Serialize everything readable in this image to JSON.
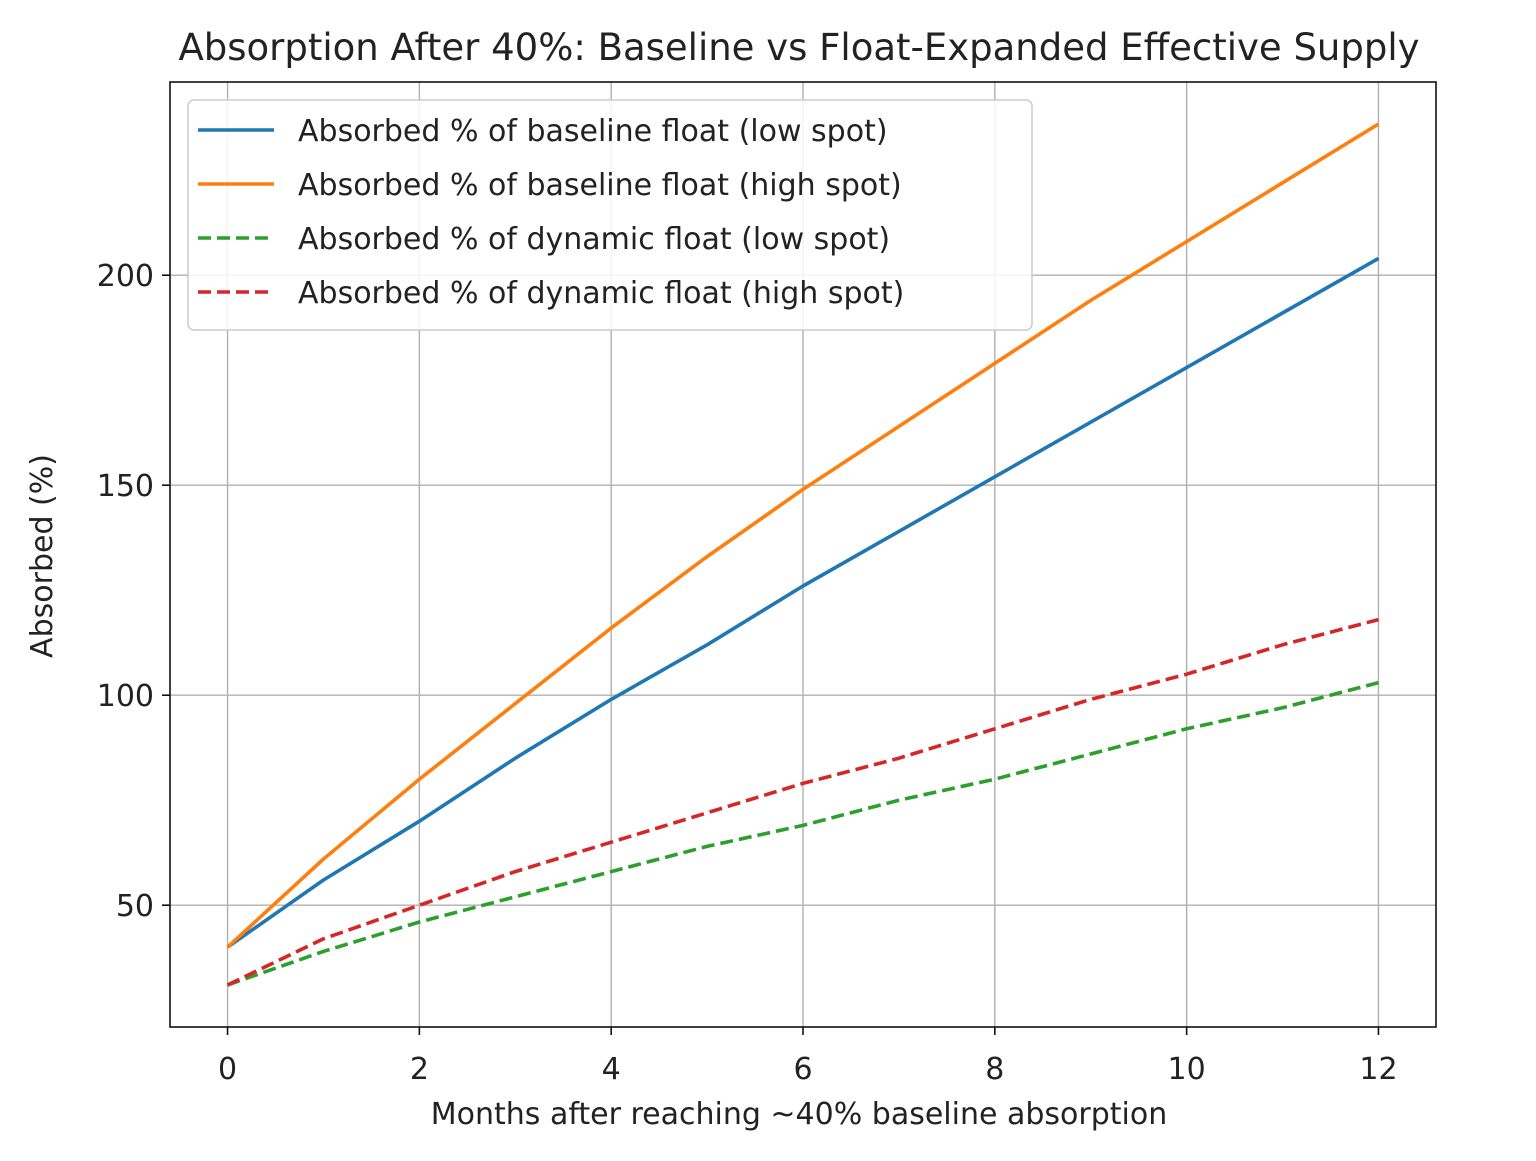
{
  "chart_data": {
    "type": "line",
    "title": "Absorption After 40%: Baseline vs Float-Expanded Effective Supply",
    "xlabel": "Months after reaching ~40% baseline absorption",
    "ylabel": "Absorbed (%)",
    "xlim": [
      -0.6,
      12.6
    ],
    "ylim": [
      21,
      246
    ],
    "xticks": [
      0,
      2,
      4,
      6,
      8,
      10,
      12
    ],
    "yticks": [
      50,
      100,
      150,
      200
    ],
    "grid": true,
    "legend_position": "upper-left",
    "x": [
      0,
      1,
      2,
      3,
      4,
      5,
      6,
      7,
      8,
      9,
      10,
      11,
      12
    ],
    "series": [
      {
        "name": "Absorbed % of baseline float (low spot)",
        "color": "#1f77b4",
        "dash": "solid",
        "values": [
          40,
          56,
          70,
          85,
          99,
          112,
          126,
          139,
          152,
          165,
          178,
          191,
          204
        ]
      },
      {
        "name": "Absorbed % of baseline float (high spot)",
        "color": "#ff7f0e",
        "dash": "solid",
        "values": [
          40,
          61,
          80,
          98,
          116,
          133,
          149,
          164,
          179,
          194,
          208,
          222,
          236
        ]
      },
      {
        "name": "Absorbed % of dynamic float (low spot)",
        "color": "#2ca02c",
        "dash": "dashed",
        "values": [
          31,
          39,
          46,
          52,
          58,
          64,
          69,
          75,
          80,
          86,
          92,
          97,
          103
        ]
      },
      {
        "name": "Absorbed % of dynamic float (high spot)",
        "color": "#d62728",
        "dash": "dashed",
        "values": [
          31,
          42,
          50,
          58,
          65,
          72,
          79,
          85,
          92,
          99,
          105,
          112,
          118
        ]
      }
    ]
  }
}
